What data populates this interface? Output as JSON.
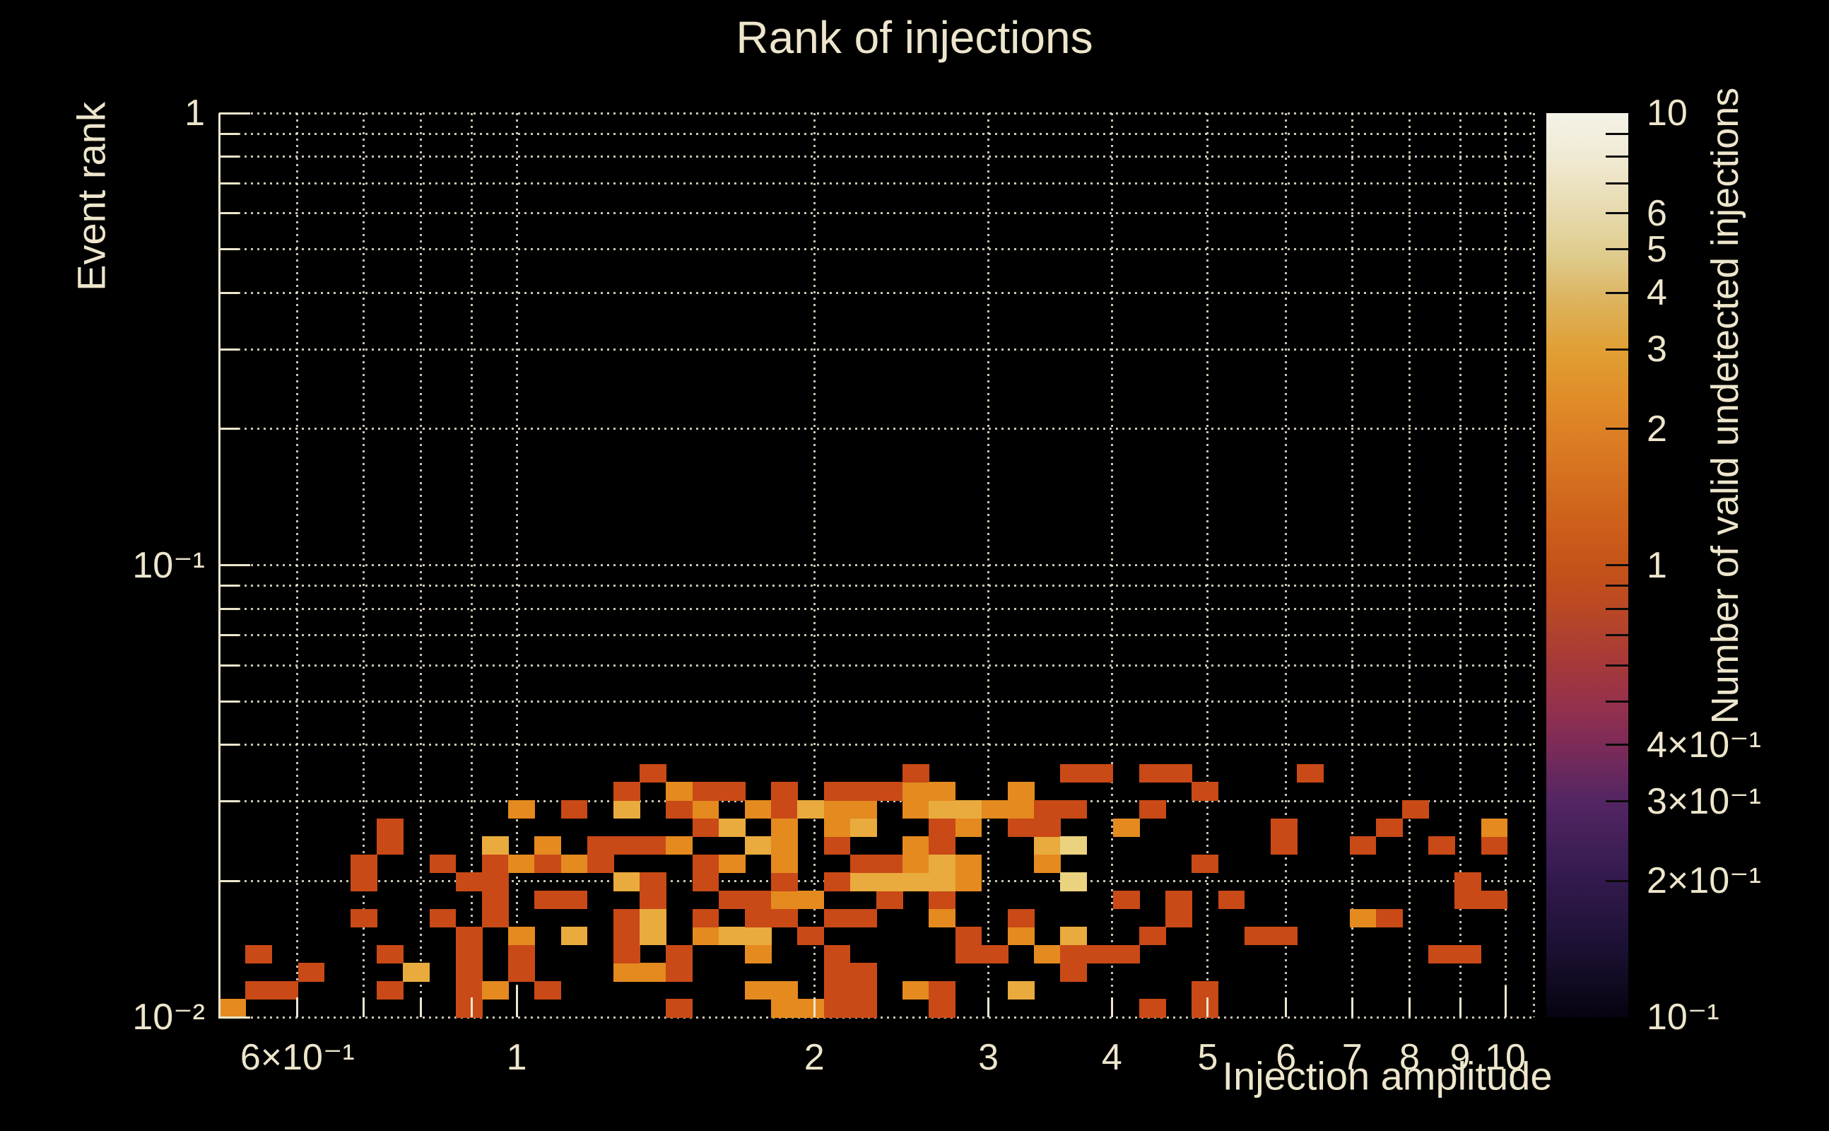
{
  "title": "Rank of injections",
  "colors": {
    "background": "#000000",
    "text": "#ede6cc",
    "grid": "#eee7cf",
    "tick": "#ede6cc",
    "colorbar_tick": "#0a0a0a"
  },
  "chart_data": {
    "type": "heatmap",
    "title": "Rank of injections",
    "xlabel": "Injection amplitude",
    "ylabel": "Event rank",
    "x_scale": "log",
    "y_scale": "log",
    "x_range": [
      0.5,
      10.68
    ],
    "y_range": [
      0.01,
      1.0
    ],
    "grid_on": true,
    "grid": {
      "x": [
        0.6,
        0.7,
        0.8,
        0.9,
        1,
        2,
        3,
        4,
        5,
        6,
        7,
        8,
        9,
        10,
        10.68
      ],
      "y": [
        1,
        0.9,
        0.8,
        0.7,
        0.6,
        0.5,
        0.4,
        0.3,
        0.2,
        0.1,
        0.09,
        0.08,
        0.07,
        0.06,
        0.05,
        0.04,
        0.03,
        0.02,
        0.01
      ]
    },
    "x_ticks": [
      {
        "v": 0.6,
        "label": "6×10⁻¹"
      },
      {
        "v": 0.7
      },
      {
        "v": 0.8
      },
      {
        "v": 0.9
      },
      {
        "v": 1,
        "label": "1",
        "major": true
      },
      {
        "v": 2,
        "label": "2"
      },
      {
        "v": 3,
        "label": "3"
      },
      {
        "v": 4,
        "label": "4"
      },
      {
        "v": 5,
        "label": "5"
      },
      {
        "v": 6,
        "label": "6"
      },
      {
        "v": 7,
        "label": "7"
      },
      {
        "v": 8,
        "label": "8"
      },
      {
        "v": 9,
        "label": "9"
      },
      {
        "v": 10,
        "label": "10",
        "major": true
      }
    ],
    "y_ticks": [
      {
        "v": 1,
        "label": "1",
        "major": true
      },
      {
        "v": 0.9
      },
      {
        "v": 0.8
      },
      {
        "v": 0.7
      },
      {
        "v": 0.6
      },
      {
        "v": 0.5
      },
      {
        "v": 0.4
      },
      {
        "v": 0.3
      },
      {
        "v": 0.2
      },
      {
        "v": 0.1,
        "label": "10⁻¹",
        "major": true
      },
      {
        "v": 0.09
      },
      {
        "v": 0.08
      },
      {
        "v": 0.07
      },
      {
        "v": 0.06
      },
      {
        "v": 0.05
      },
      {
        "v": 0.04
      },
      {
        "v": 0.03
      },
      {
        "v": 0.02
      },
      {
        "v": 0.01,
        "label": "10⁻²",
        "major": true
      }
    ],
    "bins": {
      "ncols": 50,
      "nrows": 50
    },
    "value_colors": {
      "1": "#c94a16",
      "2": "#e48a1f",
      "3": "#e9ab3e",
      "4": "#ead27e"
    },
    "cells": [
      [
        0,
        0,
        2
      ],
      [
        1,
        1,
        1
      ],
      [
        2,
        1,
        1
      ],
      [
        3,
        2,
        1
      ],
      [
        1,
        3,
        1
      ],
      [
        5,
        5,
        1
      ],
      [
        5,
        7,
        1
      ],
      [
        5,
        8,
        1
      ],
      [
        6,
        1,
        1
      ],
      [
        6,
        3,
        1
      ],
      [
        6,
        9,
        1
      ],
      [
        6,
        10,
        1
      ],
      [
        7,
        2,
        3
      ],
      [
        8,
        5,
        1
      ],
      [
        8,
        8,
        1
      ],
      [
        9,
        0,
        1
      ],
      [
        9,
        1,
        1
      ],
      [
        9,
        2,
        1
      ],
      [
        9,
        3,
        1
      ],
      [
        9,
        4,
        1
      ],
      [
        9,
        7,
        1
      ],
      [
        10,
        1,
        2
      ],
      [
        10,
        5,
        1
      ],
      [
        10,
        6,
        1
      ],
      [
        10,
        7,
        1
      ],
      [
        10,
        8,
        1
      ],
      [
        10,
        9,
        3
      ],
      [
        11,
        2,
        1
      ],
      [
        11,
        3,
        1
      ],
      [
        11,
        4,
        2
      ],
      [
        11,
        8,
        2
      ],
      [
        11,
        11,
        2
      ],
      [
        12,
        1,
        1
      ],
      [
        12,
        6,
        1
      ],
      [
        12,
        8,
        1
      ],
      [
        12,
        9,
        2
      ],
      [
        13,
        4,
        3
      ],
      [
        13,
        6,
        1
      ],
      [
        13,
        8,
        2
      ],
      [
        13,
        11,
        1
      ],
      [
        14,
        8,
        1
      ],
      [
        14,
        9,
        1
      ],
      [
        15,
        2,
        2
      ],
      [
        15,
        3,
        1
      ],
      [
        15,
        4,
        1
      ],
      [
        15,
        5,
        1
      ],
      [
        15,
        7,
        3
      ],
      [
        15,
        9,
        1
      ],
      [
        15,
        11,
        3
      ],
      [
        15,
        12,
        1
      ],
      [
        16,
        2,
        2
      ],
      [
        16,
        4,
        3
      ],
      [
        16,
        5,
        3
      ],
      [
        16,
        6,
        1
      ],
      [
        16,
        7,
        1
      ],
      [
        16,
        9,
        1
      ],
      [
        16,
        13,
        1
      ],
      [
        17,
        0,
        1
      ],
      [
        17,
        2,
        1
      ],
      [
        17,
        3,
        1
      ],
      [
        17,
        9,
        2
      ],
      [
        17,
        11,
        1
      ],
      [
        17,
        12,
        2
      ],
      [
        18,
        4,
        2
      ],
      [
        18,
        5,
        1
      ],
      [
        18,
        7,
        1
      ],
      [
        18,
        8,
        1
      ],
      [
        18,
        10,
        1
      ],
      [
        18,
        11,
        2
      ],
      [
        18,
        12,
        1
      ],
      [
        19,
        4,
        3
      ],
      [
        19,
        6,
        1
      ],
      [
        19,
        8,
        2
      ],
      [
        19,
        10,
        3
      ],
      [
        19,
        12,
        1
      ],
      [
        20,
        1,
        2
      ],
      [
        20,
        3,
        2
      ],
      [
        20,
        4,
        3
      ],
      [
        20,
        5,
        1
      ],
      [
        20,
        6,
        1
      ],
      [
        20,
        9,
        3
      ],
      [
        20,
        11,
        2
      ],
      [
        21,
        0,
        2
      ],
      [
        21,
        1,
        2
      ],
      [
        21,
        5,
        1
      ],
      [
        21,
        6,
        2
      ],
      [
        21,
        7,
        1
      ],
      [
        21,
        8,
        2
      ],
      [
        21,
        9,
        2
      ],
      [
        21,
        10,
        2
      ],
      [
        21,
        11,
        1
      ],
      [
        21,
        12,
        1
      ],
      [
        22,
        0,
        2
      ],
      [
        22,
        4,
        1
      ],
      [
        22,
        6,
        2
      ],
      [
        22,
        11,
        3
      ],
      [
        23,
        0,
        1
      ],
      [
        23,
        1,
        1
      ],
      [
        23,
        2,
        1
      ],
      [
        23,
        3,
        1
      ],
      [
        23,
        5,
        1
      ],
      [
        23,
        7,
        1
      ],
      [
        23,
        9,
        1
      ],
      [
        23,
        10,
        2
      ],
      [
        23,
        11,
        2
      ],
      [
        23,
        12,
        1
      ],
      [
        24,
        0,
        1
      ],
      [
        24,
        1,
        1
      ],
      [
        24,
        2,
        1
      ],
      [
        24,
        5,
        1
      ],
      [
        24,
        7,
        3
      ],
      [
        24,
        8,
        1
      ],
      [
        24,
        10,
        3
      ],
      [
        24,
        11,
        2
      ],
      [
        24,
        12,
        1
      ],
      [
        25,
        6,
        1
      ],
      [
        25,
        7,
        3
      ],
      [
        25,
        8,
        1
      ],
      [
        25,
        12,
        1
      ],
      [
        26,
        1,
        2
      ],
      [
        26,
        7,
        3
      ],
      [
        26,
        8,
        2
      ],
      [
        26,
        9,
        2
      ],
      [
        26,
        11,
        2
      ],
      [
        26,
        12,
        2
      ],
      [
        26,
        13,
        1
      ],
      [
        27,
        0,
        1
      ],
      [
        27,
        1,
        1
      ],
      [
        27,
        5,
        2
      ],
      [
        27,
        6,
        1
      ],
      [
        27,
        7,
        3
      ],
      [
        27,
        8,
        3
      ],
      [
        27,
        9,
        1
      ],
      [
        27,
        10,
        1
      ],
      [
        27,
        11,
        3
      ],
      [
        27,
        12,
        2
      ],
      [
        28,
        3,
        1
      ],
      [
        28,
        4,
        1
      ],
      [
        28,
        7,
        2
      ],
      [
        28,
        8,
        2
      ],
      [
        28,
        10,
        2
      ],
      [
        28,
        11,
        3
      ],
      [
        29,
        3,
        1
      ],
      [
        29,
        11,
        2
      ],
      [
        30,
        1,
        3
      ],
      [
        30,
        4,
        2
      ],
      [
        30,
        5,
        1
      ],
      [
        30,
        10,
        1
      ],
      [
        30,
        11,
        2
      ],
      [
        30,
        12,
        2
      ],
      [
        31,
        3,
        2
      ],
      [
        31,
        8,
        2
      ],
      [
        31,
        9,
        3
      ],
      [
        31,
        10,
        1
      ],
      [
        31,
        11,
        1
      ],
      [
        32,
        2,
        1
      ],
      [
        32,
        3,
        1
      ],
      [
        32,
        4,
        3
      ],
      [
        32,
        7,
        4
      ],
      [
        32,
        9,
        4
      ],
      [
        32,
        11,
        1
      ],
      [
        32,
        13,
        1
      ],
      [
        33,
        3,
        1
      ],
      [
        33,
        13,
        1
      ],
      [
        34,
        3,
        1
      ],
      [
        34,
        6,
        1
      ],
      [
        34,
        10,
        2
      ],
      [
        35,
        0,
        1
      ],
      [
        35,
        4,
        1
      ],
      [
        35,
        11,
        1
      ],
      [
        35,
        13,
        1
      ],
      [
        36,
        5,
        1
      ],
      [
        36,
        6,
        1
      ],
      [
        36,
        13,
        1
      ],
      [
        37,
        0,
        1
      ],
      [
        37,
        1,
        1
      ],
      [
        37,
        8,
        1
      ],
      [
        37,
        12,
        1
      ],
      [
        38,
        6,
        1
      ],
      [
        39,
        4,
        1
      ],
      [
        40,
        4,
        1
      ],
      [
        40,
        9,
        1
      ],
      [
        40,
        10,
        1
      ],
      [
        41,
        13,
        1
      ],
      [
        43,
        5,
        2
      ],
      [
        43,
        9,
        1
      ],
      [
        44,
        5,
        1
      ],
      [
        44,
        10,
        1
      ],
      [
        45,
        11,
        1
      ],
      [
        46,
        3,
        1
      ],
      [
        46,
        9,
        1
      ],
      [
        47,
        3,
        1
      ],
      [
        47,
        6,
        1
      ],
      [
        47,
        7,
        1
      ],
      [
        48,
        6,
        1
      ],
      [
        48,
        9,
        1
      ],
      [
        48,
        10,
        2
      ]
    ],
    "colorbar": {
      "label": "Number of valid undetected injections",
      "range": [
        0.1,
        10
      ],
      "scale": "log",
      "ticks": [
        9,
        8,
        7,
        6,
        5,
        4,
        3,
        2,
        1,
        0.9,
        0.8,
        0.7,
        0.6,
        0.5,
        0.4,
        0.3,
        0.2
      ],
      "tick_labels": [
        {
          "v": 10,
          "label": "10"
        },
        {
          "v": 6,
          "label": "6"
        },
        {
          "v": 5,
          "label": "5"
        },
        {
          "v": 4,
          "label": "4"
        },
        {
          "v": 3,
          "label": "3"
        },
        {
          "v": 2,
          "label": "2"
        },
        {
          "v": 1,
          "label": "1"
        },
        {
          "v": 0.4,
          "label": "4×10⁻¹"
        },
        {
          "v": 0.3,
          "label": "3×10⁻¹"
        },
        {
          "v": 0.2,
          "label": "2×10⁻¹"
        },
        {
          "v": 0.1,
          "label": "10⁻¹"
        }
      ],
      "gradient": [
        {
          "p": 0,
          "c": "#070310"
        },
        {
          "p": 8,
          "c": "#1c1134"
        },
        {
          "p": 16,
          "c": "#351b50"
        },
        {
          "p": 24,
          "c": "#542663"
        },
        {
          "p": 30,
          "c": "#7c2b58"
        },
        {
          "p": 34,
          "c": "#93304e"
        },
        {
          "p": 40,
          "c": "#a93b36"
        },
        {
          "p": 46,
          "c": "#bc4a22"
        },
        {
          "p": 50,
          "c": "#c45318"
        },
        {
          "p": 56,
          "c": "#cf641c"
        },
        {
          "p": 62,
          "c": "#d97722"
        },
        {
          "p": 68,
          "c": "#e08b28"
        },
        {
          "p": 74,
          "c": "#e0a035"
        },
        {
          "p": 79,
          "c": "#ddb25c"
        },
        {
          "p": 84,
          "c": "#decb8a"
        },
        {
          "p": 90,
          "c": "#e9dcb4"
        },
        {
          "p": 95,
          "c": "#f0ead3"
        },
        {
          "p": 100,
          "c": "#f5f2e7"
        }
      ]
    }
  }
}
